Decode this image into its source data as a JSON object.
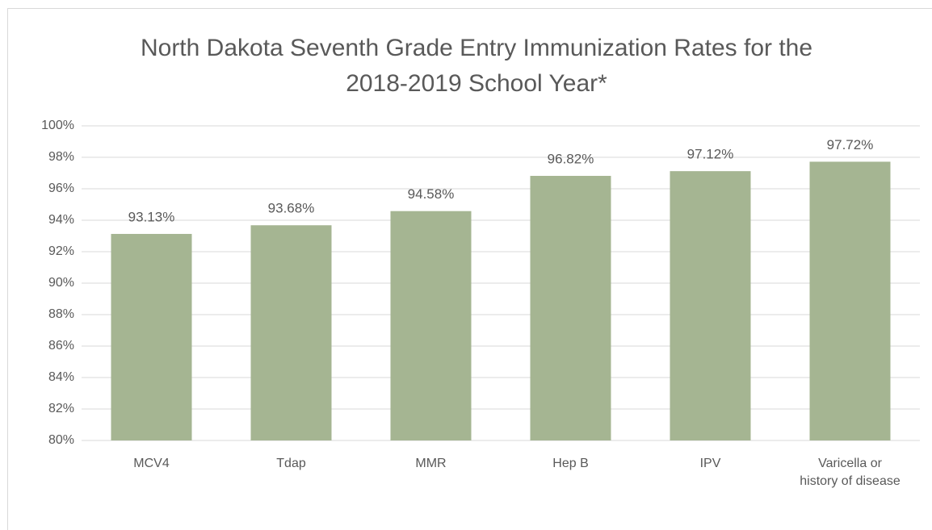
{
  "chart_data": {
    "type": "bar",
    "title": "North Dakota Seventh Grade Entry Immunization Rates for the 2018-2019 School Year*",
    "categories": [
      "MCV4",
      "Tdap",
      "MMR",
      "Hep B",
      "IPV",
      "Varicella or history of disease"
    ],
    "values": [
      93.13,
      93.68,
      94.58,
      96.82,
      97.12,
      97.72
    ],
    "value_labels": [
      "93.13%",
      "93.68%",
      "94.58%",
      "96.82%",
      "97.12%",
      "97.72%"
    ],
    "color": "#a5b592",
    "ylim": [
      80,
      100
    ],
    "yticks": [
      {
        "value": 80,
        "label": "80%"
      },
      {
        "value": 82,
        "label": "82%"
      },
      {
        "value": 84,
        "label": "84%"
      },
      {
        "value": 86,
        "label": "86%"
      },
      {
        "value": 88,
        "label": "88%"
      },
      {
        "value": 90,
        "label": "90%"
      },
      {
        "value": 92,
        "label": "92%"
      },
      {
        "value": 94,
        "label": "94%"
      },
      {
        "value": 96,
        "label": "96%"
      },
      {
        "value": 98,
        "label": "98%"
      },
      {
        "value": 100,
        "label": "100%"
      }
    ],
    "grid": true
  }
}
